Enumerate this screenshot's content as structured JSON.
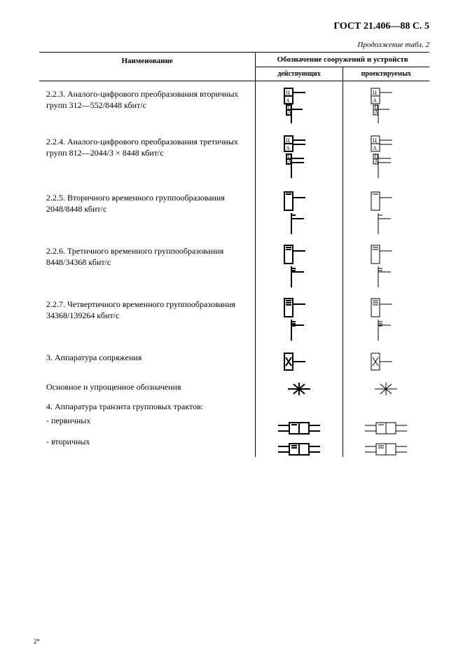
{
  "header": "ГОСТ 21.406—88 С. 5",
  "continuation": "Продолжение табл. 2",
  "cols": {
    "name": "Наименование",
    "group": "Обозначение сооружений и устройств",
    "left": "действующих",
    "right": "проектируемых"
  },
  "rows": [
    {
      "name": "2.2.3. Аналого-цифрового преобразования вторичных групп 312—552/8448 кбит/с",
      "sym": "adc",
      "labeled": true
    },
    {
      "name": "2.2.4. Аналого-цифрового преобразования третичных групп 812—2044/3 × 8448 кбит/с",
      "sym": "adc3",
      "labeled": true
    },
    {
      "name": "2.2.5. Вторичного   временного   группообразования 2048/8448 кбит/с",
      "sym": "mux2"
    },
    {
      "name": "2.2.6. Третичного   временного   группообразования 8448/34368 кбит/с",
      "sym": "mux3"
    },
    {
      "name": "2.2.7. Четвертичного временного группообразования 34368/139264 кбит/с",
      "sym": "mux4"
    },
    {
      "name": "3. Аппаратура сопряжения",
      "sym": "conj"
    },
    {
      "name": "Основное и упрощенное обозначения",
      "sym": "star"
    },
    {
      "name": "4. Аппаратура транзита групповых трактов:",
      "sym": ""
    },
    {
      "name": "- первичных",
      "sym": "trans1"
    },
    {
      "name": "- вторичных",
      "sym": "trans2"
    }
  ],
  "footnote": "2*",
  "style": {
    "existing_stroke": "thick",
    "designed_stroke": "thin"
  }
}
